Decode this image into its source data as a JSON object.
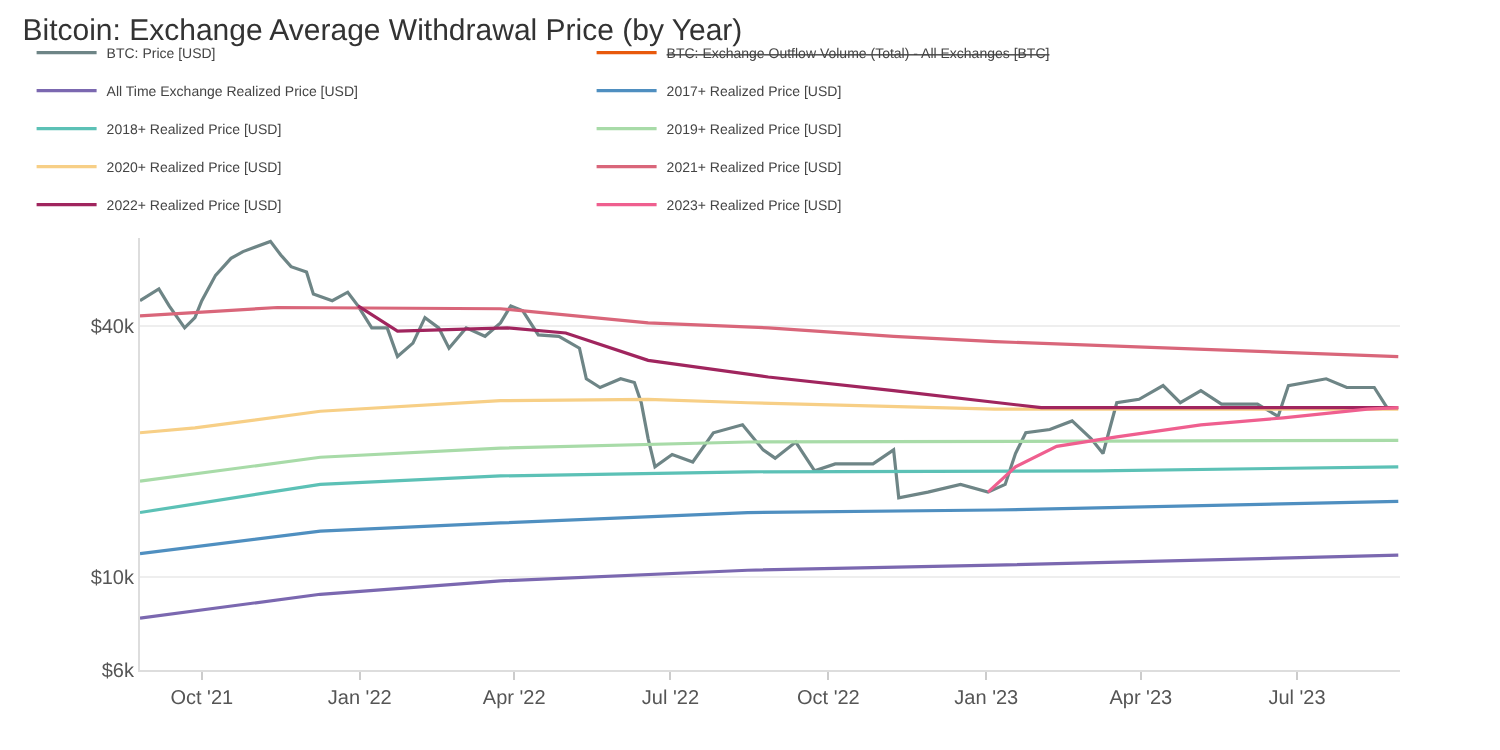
{
  "chart_data": {
    "type": "line",
    "title": "Bitcoin: Exchange Average Withdrawal Price (by Year)",
    "xlim": [
      "2021-08-26",
      "2023-08-30"
    ],
    "xticks": [
      {
        "value": "2021-10-01",
        "label": "Oct '21"
      },
      {
        "value": "2022-01-01",
        "label": "Jan '22"
      },
      {
        "value": "2022-04-01",
        "label": "Apr '22"
      },
      {
        "value": "2022-07-01",
        "label": "Jul '22"
      },
      {
        "value": "2022-10-01",
        "label": "Oct '22"
      },
      {
        "value": "2023-01-01",
        "label": "Jan '23"
      },
      {
        "value": "2023-04-01",
        "label": "Apr '23"
      },
      {
        "value": "2023-07-01",
        "label": "Jul '23"
      }
    ],
    "ylim": [
      6000,
      65000
    ],
    "yticks": [
      {
        "value": 6000,
        "label": "$6k"
      },
      {
        "value": 10000,
        "label": "$10k"
      },
      {
        "value": 40000,
        "label": "$40k"
      }
    ],
    "log": "y",
    "grid": "y",
    "legend": "top",
    "marker": "none",
    "line_style": "solid",
    "series": [
      {
        "name": "BTC: Price [USD]",
        "color": "#6e8586",
        "x": [
          "2021-08-26",
          "2021-09-06",
          "2021-09-12",
          "2021-09-21",
          "2021-09-27",
          "2021-10-01",
          "2021-10-09",
          "2021-10-18",
          "2021-10-25",
          "2021-11-10",
          "2021-11-16",
          "2021-11-22",
          "2021-12-01",
          "2021-12-05",
          "2021-12-16",
          "2021-12-25",
          "2021-12-31",
          "2022-01-08",
          "2022-01-17",
          "2022-01-23",
          "2022-02-01",
          "2022-02-08",
          "2022-02-16",
          "2022-02-22",
          "2022-03-04",
          "2022-03-15",
          "2022-03-24",
          "2022-03-30",
          "2022-04-06",
          "2022-04-15",
          "2022-04-27",
          "2022-05-09",
          "2022-05-13",
          "2022-05-21",
          "2022-06-02",
          "2022-06-10",
          "2022-06-14",
          "2022-06-18",
          "2022-06-22",
          "2022-07-02",
          "2022-07-14",
          "2022-07-26",
          "2022-08-12",
          "2022-08-24",
          "2022-08-31",
          "2022-09-12",
          "2022-09-23",
          "2022-10-05",
          "2022-10-27",
          "2022-11-08",
          "2022-11-11",
          "2022-11-28",
          "2022-12-17",
          "2023-01-02",
          "2023-01-12",
          "2023-01-18",
          "2023-01-24",
          "2023-02-07",
          "2023-02-20",
          "2023-03-03",
          "2023-03-10",
          "2023-03-18",
          "2023-03-31",
          "2023-04-14",
          "2023-04-24",
          "2023-05-06",
          "2023-05-18",
          "2023-06-08",
          "2023-06-20",
          "2023-06-26",
          "2023-07-18",
          "2023-07-30",
          "2023-08-15",
          "2023-08-23"
        ],
        "values": [
          46000,
          49100,
          44700,
          39600,
          41900,
          46000,
          52900,
          58100,
          60300,
          63800,
          59200,
          55500,
          53900,
          47700,
          46000,
          48200,
          44700,
          39600,
          39600,
          33800,
          36400,
          41900,
          39600,
          35400,
          39600,
          37800,
          40700,
          44700,
          43500,
          38100,
          37800,
          35400,
          29900,
          28500,
          29900,
          29300,
          26200,
          21500,
          18400,
          19700,
          18900,
          22200,
          23200,
          20200,
          19300,
          21100,
          18000,
          18700,
          18700,
          20200,
          15500,
          16000,
          16700,
          16000,
          16700,
          19800,
          22200,
          22600,
          23700,
          21500,
          19800,
          26200,
          26700,
          28800,
          26200,
          28000,
          26000,
          26000,
          24300,
          28800,
          29900,
          28500,
          28500,
          25300
        ]
      },
      {
        "name": "BTC: Exchange Outflow Volume (Total) - All Exchanges [BTC]",
        "color": "#e8590c"
      },
      {
        "name": "All Time Exchange Realized Price [USD]",
        "color": "#7b68b0",
        "x": [
          "2021-08-26",
          "2021-12-09",
          "2022-03-24",
          "2022-08-15",
          "2023-01-06",
          "2023-08-29"
        ],
        "values": [
          7990,
          9110,
          9810,
          10400,
          10700,
          11300
        ]
      },
      {
        "name": "2017+ Realized Price [USD]",
        "color": "#4f8fc0",
        "x": [
          "2021-08-26",
          "2021-12-09",
          "2022-03-24",
          "2022-08-15",
          "2023-01-06",
          "2023-08-29"
        ],
        "values": [
          11400,
          12900,
          13500,
          14300,
          14500,
          15200
        ]
      },
      {
        "name": "2018+ Realized Price [USD]",
        "color": "#5cc1b6",
        "x": [
          "2021-08-26",
          "2021-12-09",
          "2022-03-24",
          "2022-08-15",
          "2023-03-07",
          "2023-08-29"
        ],
        "values": [
          14300,
          16700,
          17500,
          17900,
          18000,
          18400
        ]
      },
      {
        "name": "2019+ Realized Price [USD]",
        "color": "#a8dba8",
        "x": [
          "2021-08-26",
          "2021-12-09",
          "2022-03-24",
          "2022-08-15",
          "2023-08-29"
        ],
        "values": [
          17000,
          19400,
          20400,
          21100,
          21300
        ]
      },
      {
        "name": "2020+ Realized Price [USD]",
        "color": "#f7cf86",
        "x": [
          "2021-08-26",
          "2021-09-27",
          "2021-12-09",
          "2022-03-24",
          "2022-06-18",
          "2022-08-15",
          "2023-01-06",
          "2023-08-29"
        ],
        "values": [
          22200,
          22800,
          25000,
          26500,
          26700,
          26200,
          25300,
          25300
        ]
      },
      {
        "name": "2021+ Realized Price [USD]",
        "color": "#d9667a",
        "x": [
          "2021-08-26",
          "2021-11-14",
          "2022-03-24",
          "2022-06-18",
          "2022-08-27",
          "2022-11-08",
          "2023-01-06",
          "2023-08-29"
        ],
        "values": [
          42300,
          44300,
          44000,
          40700,
          39600,
          37800,
          36700,
          33800
        ]
      },
      {
        "name": "2022+ Realized Price [USD]",
        "color": "#a0255e",
        "x": [
          "2021-12-31",
          "2022-01-23",
          "2022-03-28",
          "2022-05-01",
          "2022-06-18",
          "2022-08-27",
          "2022-11-08",
          "2023-02-02",
          "2023-08-29"
        ],
        "values": [
          44700,
          38900,
          39600,
          38500,
          33100,
          30200,
          28000,
          25500,
          25500
        ]
      },
      {
        "name": "2023+ Realized Price [USD]",
        "color": "#ef5f8f",
        "x": [
          "2023-01-02",
          "2023-01-18",
          "2023-02-11",
          "2023-03-18",
          "2023-05-06",
          "2023-06-23",
          "2023-08-11",
          "2023-08-29"
        ],
        "values": [
          16000,
          18400,
          20600,
          21700,
          23200,
          24100,
          25300,
          25500
        ]
      }
    ]
  }
}
